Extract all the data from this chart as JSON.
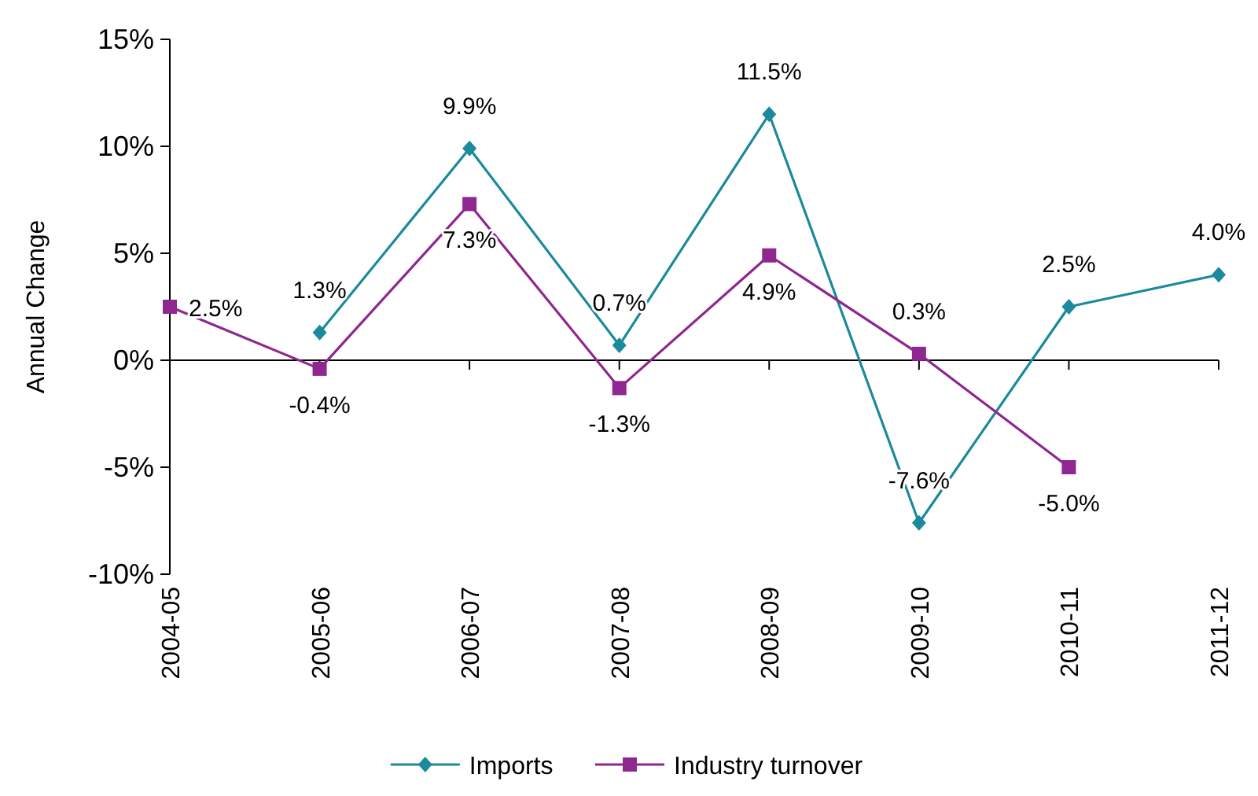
{
  "chart_data": {
    "type": "line",
    "ylabel": "Annual Change",
    "categories": [
      "2004-05",
      "2005-06",
      "2006-07",
      "2007-08",
      "2008-09",
      "2009-10",
      "2010-11",
      "2011-12"
    ],
    "series": [
      {
        "name": "Imports",
        "color": "#1a8a9c",
        "marker": "diamond",
        "values": [
          null,
          1.3,
          9.9,
          0.7,
          11.5,
          -7.6,
          2.5,
          4.0
        ],
        "value_labels": [
          null,
          "1.3%",
          "9.9%",
          "0.7%",
          "11.5%",
          "-7.6%",
          "2.5%",
          "4.0%"
        ]
      },
      {
        "name": "Industry turnover",
        "color": "#8e278f",
        "marker": "square",
        "values": [
          2.5,
          -0.4,
          7.3,
          -1.3,
          4.9,
          0.3,
          -5.0,
          null
        ],
        "value_labels": [
          "2.5%",
          "-0.4%",
          "7.3%",
          "-1.3%",
          "4.9%",
          "0.3%",
          "-5.0%",
          null
        ]
      }
    ],
    "ylim": [
      -10,
      15
    ],
    "yticks": [
      {
        "value": -10,
        "label": "-10%"
      },
      {
        "value": -5,
        "label": "-5%"
      },
      {
        "value": 0,
        "label": "0%"
      },
      {
        "value": 5,
        "label": "5%"
      },
      {
        "value": 10,
        "label": "10%"
      },
      {
        "value": 15,
        "label": "15%"
      }
    ],
    "legend": "bottom",
    "line_style": "solid"
  }
}
